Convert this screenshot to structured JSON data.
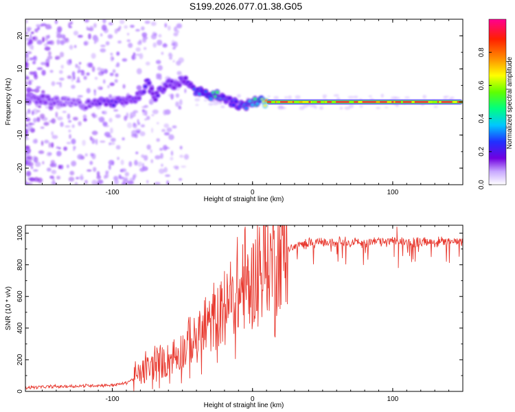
{
  "figure": {
    "title": "S199.2026.077.01.38.G05"
  },
  "chart_data": [
    {
      "type": "heatmap",
      "panel": "top",
      "title": "",
      "xlabel": "Height of straight line (km)",
      "ylabel": "Frequency (Hz)",
      "xlim": [
        -162,
        150
      ],
      "ylim": [
        -25,
        25
      ],
      "x_ticks": [
        -100,
        0,
        100
      ],
      "y_ticks": [
        -20,
        -10,
        0,
        10,
        20
      ],
      "colorbar": {
        "label": "Normalized spectral amplitude",
        "range": [
          0,
          1
        ],
        "ticks": [
          "0.0",
          "0.2",
          "0.4",
          "0.6",
          "0.8"
        ],
        "colors": [
          "#ffffff",
          "#a060ff",
          "#7000e0",
          "#2020ff",
          "#00c0ff",
          "#00ff60",
          "#80ff00",
          "#ffff00",
          "#ff8000",
          "#ff0000",
          "#ff00a0"
        ]
      },
      "ridge_x": [
        -160,
        -150,
        -140,
        -130,
        -120,
        -110,
        -100,
        -90,
        -80,
        -75,
        -70,
        -65,
        -60,
        -55,
        -50,
        -45,
        -40,
        -35,
        -30,
        -25,
        -20,
        -15,
        -10,
        -5,
        0,
        5,
        10,
        150
      ],
      "ridge_freq": [
        1,
        1,
        0,
        0,
        -1,
        0,
        0,
        0,
        2,
        6,
        1,
        4,
        6,
        5,
        7,
        6,
        3,
        3,
        2,
        2,
        1,
        0,
        -1,
        -1,
        0,
        0,
        0,
        0
      ],
      "ridge_amplitude": [
        0.15,
        0.18,
        0.15,
        0.12,
        0.15,
        0.2,
        0.22,
        0.2,
        0.2,
        0.25,
        0.2,
        0.25,
        0.2,
        0.2,
        0.22,
        0.25,
        0.3,
        0.35,
        0.4,
        0.45,
        0.3,
        0.3,
        0.3,
        0.35,
        0.4,
        0.45,
        0.9,
        0.95
      ]
    },
    {
      "type": "line",
      "panel": "bottom",
      "title": "",
      "xlabel": "Height of straight line (km)",
      "ylabel": "SNR (10 * v/v)",
      "xlim": [
        -162,
        150
      ],
      "ylim": [
        0,
        1050
      ],
      "x_ticks": [
        -100,
        0,
        100
      ],
      "y_ticks": [
        0,
        200,
        400,
        600,
        800,
        1000
      ],
      "series": [
        {
          "name": "SNR",
          "color": "#e8392f",
          "x": [
            -162,
            -150,
            -140,
            -130,
            -120,
            -110,
            -100,
            -95,
            -90,
            -85,
            -80,
            -75,
            -70,
            -65,
            -60,
            -55,
            -50,
            -45,
            -40,
            -35,
            -30,
            -25,
            -20,
            -15,
            -10,
            -5,
            0,
            5,
            10,
            15,
            20,
            25,
            30,
            35,
            40,
            50,
            60,
            70,
            80,
            90,
            100,
            110,
            120,
            130,
            140,
            150
          ],
          "y": [
            25,
            28,
            30,
            32,
            35,
            38,
            40,
            45,
            55,
            80,
            110,
            140,
            160,
            180,
            200,
            230,
            260,
            300,
            330,
            380,
            420,
            470,
            520,
            560,
            600,
            650,
            700,
            760,
            800,
            840,
            880,
            900,
            920,
            930,
            935,
            940,
            945,
            945,
            940,
            945,
            950,
            945,
            940,
            945,
            945,
            945
          ]
        }
      ],
      "spikes": [
        {
          "x": 103,
          "y": 1040
        },
        {
          "x": -7,
          "y": 930
        },
        {
          "x": -20,
          "y": 760
        },
        {
          "x": 101,
          "y": 850
        },
        {
          "x": 104,
          "y": 780
        },
        {
          "x": 116,
          "y": 820
        }
      ]
    }
  ]
}
